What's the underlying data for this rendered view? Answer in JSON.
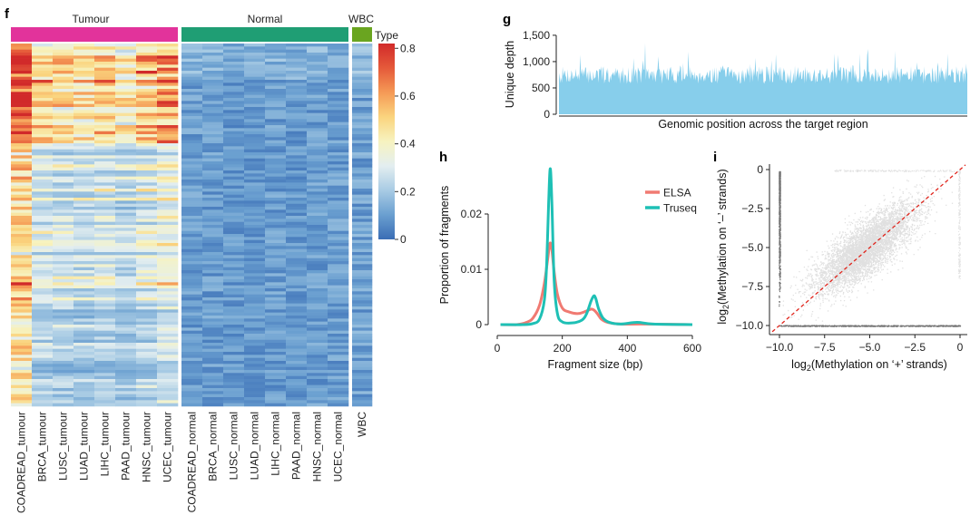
{
  "panels": {
    "f": {
      "label": "f"
    },
    "g": {
      "label": "g"
    },
    "h": {
      "label": "h"
    },
    "i": {
      "label": "i"
    }
  },
  "chart_data": [
    {
      "id": "f",
      "type": "heatmap",
      "title": "",
      "groups": [
        {
          "name": "Tumour",
          "color": "#e2339b"
        },
        {
          "name": "Normal",
          "color": "#1f9e74"
        },
        {
          "name": "WBC",
          "color": "#6aa520"
        }
      ],
      "columns": [
        {
          "name": "COADREAD_tumour",
          "group": "Tumour",
          "mean_level": 0.42
        },
        {
          "name": "BRCA_tumour",
          "group": "Tumour",
          "mean_level": 0.27
        },
        {
          "name": "LUSC_tumour",
          "group": "Tumour",
          "mean_level": 0.26
        },
        {
          "name": "LUAD_tumour",
          "group": "Tumour",
          "mean_level": 0.25
        },
        {
          "name": "LIHC_tumour",
          "group": "Tumour",
          "mean_level": 0.27
        },
        {
          "name": "PAAD_tumour",
          "group": "Tumour",
          "mean_level": 0.23
        },
        {
          "name": "HNSC_tumour",
          "group": "Tumour",
          "mean_level": 0.28
        },
        {
          "name": "UCEC_tumour",
          "group": "Tumour",
          "mean_level": 0.33
        },
        {
          "name": "COADREAD_normal",
          "group": "Normal",
          "mean_level": 0.09
        },
        {
          "name": "BRCA_normal",
          "group": "Normal",
          "mean_level": 0.09
        },
        {
          "name": "LUSC_normal",
          "group": "Normal",
          "mean_level": 0.08
        },
        {
          "name": "LUAD_normal",
          "group": "Normal",
          "mean_level": 0.08
        },
        {
          "name": "LIHC_normal",
          "group": "Normal",
          "mean_level": 0.09
        },
        {
          "name": "PAAD_normal",
          "group": "Normal",
          "mean_level": 0.08
        },
        {
          "name": "HNSC_normal",
          "group": "Normal",
          "mean_level": 0.09
        },
        {
          "name": "UCEC_normal",
          "group": "Normal",
          "mean_level": 0.09
        },
        {
          "name": "WBC",
          "group": "WBC",
          "mean_level": 0.1
        }
      ],
      "legend": {
        "title": "Type",
        "ticks": [
          "0",
          "0.2",
          "0.4",
          "0.6",
          "0.8"
        ],
        "range": [
          0,
          0.82
        ],
        "colors": [
          "#3a6db5",
          "#6a9fd0",
          "#a8cbe4",
          "#e3eef0",
          "#f7f3c0",
          "#fad47e",
          "#f59a56",
          "#e55a3a",
          "#d12a2a"
        ]
      }
    },
    {
      "id": "g",
      "type": "area",
      "xlabel": "Genomic position across the target region",
      "ylabel": "Unique depth",
      "yticks": [
        "0",
        "500",
        "1,000",
        "1,500"
      ],
      "ylim": [
        0,
        1550
      ],
      "typical_depth": 800,
      "max_depth": 1350,
      "color": "#87ceeb"
    },
    {
      "id": "h",
      "type": "line",
      "xlabel": "Fragment size (bp)",
      "ylabel": "Proportion of fragments",
      "xticks": [
        "0",
        "200",
        "400",
        "600"
      ],
      "yticks": [
        "0",
        "0.01",
        "0.02"
      ],
      "xlim": [
        -20,
        620
      ],
      "ylim": [
        -0.001,
        0.03
      ],
      "series": [
        {
          "name": "ELSA",
          "color": "#f07a72",
          "x": [
            10,
            60,
            90,
            110,
            130,
            145,
            155,
            162,
            168,
            175,
            185,
            200,
            220,
            250,
            280,
            290,
            300,
            310,
            320,
            340,
            380,
            450,
            600
          ],
          "y": [
            0,
            0,
            0.0004,
            0.0012,
            0.0035,
            0.0075,
            0.0118,
            0.0147,
            0.0135,
            0.0095,
            0.0055,
            0.003,
            0.0023,
            0.002,
            0.0026,
            0.0028,
            0.0025,
            0.0018,
            0.001,
            0.0004,
            0.0001,
            0.0001,
            0
          ]
        },
        {
          "name": "Truseq",
          "color": "#1ec0b5",
          "x": [
            10,
            80,
            110,
            130,
            145,
            152,
            158,
            163,
            168,
            175,
            185,
            200,
            230,
            260,
            275,
            288,
            297,
            303,
            312,
            325,
            345,
            380,
            430,
            480,
            600
          ],
          "y": [
            0,
            0,
            0.0002,
            0.001,
            0.0045,
            0.011,
            0.022,
            0.0282,
            0.022,
            0.008,
            0.002,
            0.0005,
            0.0003,
            0.0008,
            0.002,
            0.0042,
            0.0052,
            0.0047,
            0.0028,
            0.0012,
            0.0004,
            0.0001,
            0.0004,
            0.0001,
            0
          ]
        }
      ]
    },
    {
      "id": "i",
      "type": "scatter",
      "xlabel_prefix": "log",
      "xlabel_sub": "2",
      "xlabel_suffix": "(Methylation on ‘+’ strands)",
      "ylabel_prefix": "log",
      "ylabel_sub": "2",
      "ylabel_suffix": "(Methylation on ‘–’ strands)",
      "xticks": [
        "−10.0",
        "−7.5",
        "−5.0",
        "−2.5",
        "0"
      ],
      "yticks": [
        "0",
        "−2.5",
        "−5.0",
        "−7.5",
        "−10.0"
      ],
      "xlim": [
        -10.6,
        0.4
      ],
      "ylim": [
        -10.4,
        0.4
      ],
      "cloud_center": [
        -5.2,
        -5.0
      ],
      "cloud_spread": 1.4,
      "reference_line": "y = x",
      "reference_color": "#e0241b",
      "point_color": "#000000"
    }
  ]
}
